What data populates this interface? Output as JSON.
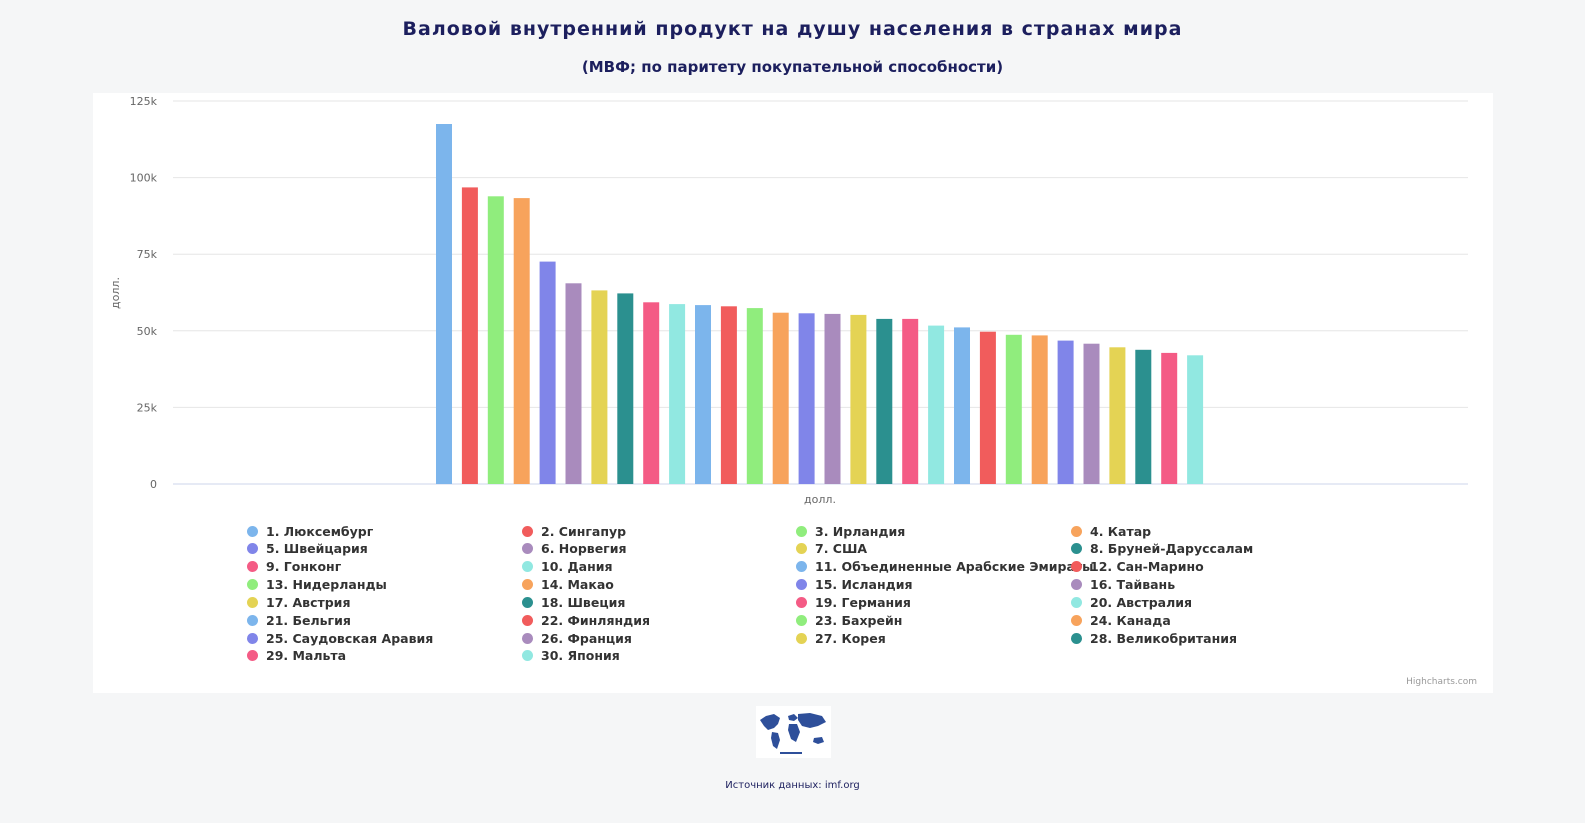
{
  "header": {
    "title": "Валовой внутренний продукт на душу населения в странах мира",
    "subtitle": "(МВФ; по паритету покупательной способности)"
  },
  "chart_data": {
    "type": "bar",
    "ylabel": "долл.",
    "xlabel": "долл.",
    "ylim": [
      0,
      125000
    ],
    "yticks": [
      0,
      25000,
      50000,
      75000,
      100000,
      125000
    ],
    "ytick_labels": [
      "0",
      "25k",
      "50k",
      "75k",
      "100k",
      "125k"
    ],
    "grid": true,
    "legend_position": "bottom",
    "series": [
      {
        "name": "1. Люксембург",
        "values": [
          117500
        ],
        "color": "#7cb5ec"
      },
      {
        "name": "2. Сингапур",
        "values": [
          96800
        ],
        "color": "#f15c5c"
      },
      {
        "name": "3. Ирландия",
        "values": [
          93900
        ],
        "color": "#90ed7d"
      },
      {
        "name": "4. Катар",
        "values": [
          93300
        ],
        "color": "#f7a35c"
      },
      {
        "name": "5. Швейцария",
        "values": [
          72600
        ],
        "color": "#8085e9"
      },
      {
        "name": "6. Норвегия",
        "values": [
          65500
        ],
        "color": "#a98bbd"
      },
      {
        "name": "7. США",
        "values": [
          63200
        ],
        "color": "#e4d354"
      },
      {
        "name": "8. Бруней-Даруссалам",
        "values": [
          62200
        ],
        "color": "#2b908f"
      },
      {
        "name": "9. Гонконг",
        "values": [
          59300
        ],
        "color": "#f45b85"
      },
      {
        "name": "10. Дания",
        "values": [
          58700
        ],
        "color": "#91e8e1"
      },
      {
        "name": "11. Объединенные Арабские Эмираты",
        "values": [
          58400
        ],
        "color": "#7cb5ec"
      },
      {
        "name": "12. Сан-Марино",
        "values": [
          58000
        ],
        "color": "#f15c5c"
      },
      {
        "name": "13. Нидерланды",
        "values": [
          57400
        ],
        "color": "#90ed7d"
      },
      {
        "name": "14. Макао",
        "values": [
          55900
        ],
        "color": "#f7a35c"
      },
      {
        "name": "15. Исландия",
        "values": [
          55700
        ],
        "color": "#8085e9"
      },
      {
        "name": "16. Тайвань",
        "values": [
          55500
        ],
        "color": "#a98bbd"
      },
      {
        "name": "17. Австрия",
        "values": [
          55200
        ],
        "color": "#e4d354"
      },
      {
        "name": "18. Швеция",
        "values": [
          53900
        ],
        "color": "#2b908f"
      },
      {
        "name": "19. Германия",
        "values": [
          53900
        ],
        "color": "#f45b85"
      },
      {
        "name": "20. Австралия",
        "values": [
          51700
        ],
        "color": "#91e8e1"
      },
      {
        "name": "21. Бельгия",
        "values": [
          51100
        ],
        "color": "#7cb5ec"
      },
      {
        "name": "22. Финляндия",
        "values": [
          49700
        ],
        "color": "#f15c5c"
      },
      {
        "name": "23. Бахрейн",
        "values": [
          48700
        ],
        "color": "#90ed7d"
      },
      {
        "name": "24. Канада",
        "values": [
          48500
        ],
        "color": "#f7a35c"
      },
      {
        "name": "25. Саудовская Аравия",
        "values": [
          46800
        ],
        "color": "#8085e9"
      },
      {
        "name": "26. Франция",
        "values": [
          45800
        ],
        "color": "#a98bbd"
      },
      {
        "name": "27. Корея",
        "values": [
          44600
        ],
        "color": "#e4d354"
      },
      {
        "name": "28. Великобритания",
        "values": [
          43800
        ],
        "color": "#2b908f"
      },
      {
        "name": "29. Мальта",
        "values": [
          42800
        ],
        "color": "#f45b85"
      },
      {
        "name": "30. Япония",
        "values": [
          42000
        ],
        "color": "#91e8e1"
      }
    ],
    "credits": "Highcharts.com"
  },
  "footer": {
    "logo_icon": "world-map-icon",
    "source": "Источник данных: imf.org"
  }
}
